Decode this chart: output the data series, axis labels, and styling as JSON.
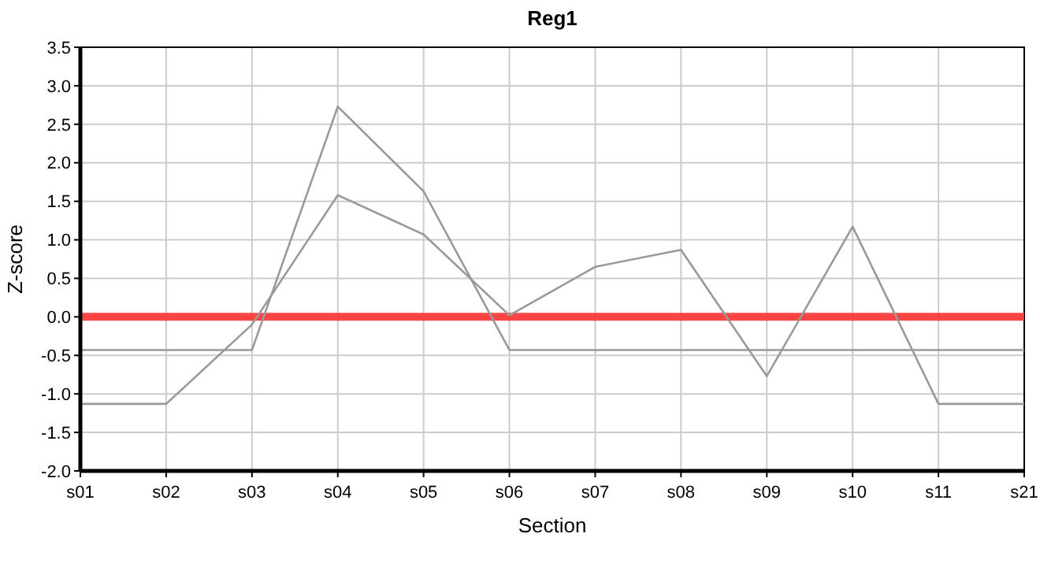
{
  "chart_data": {
    "type": "line",
    "title": "Reg1",
    "xlabel": "Section",
    "ylabel": "Z-score",
    "categories": [
      "s01",
      "s02",
      "s03",
      "s04",
      "s05",
      "s06",
      "s07",
      "s08",
      "s09",
      "s10",
      "s11",
      "s21"
    ],
    "series": [
      {
        "color": "#999999",
        "values": [
          -1.13,
          -1.13,
          -0.1,
          1.58,
          1.07,
          0.02,
          0.65,
          0.87,
          -0.77,
          1.17,
          -1.13,
          -1.13
        ]
      },
      {
        "color": "#999999",
        "values": [
          -0.43,
          -0.43,
          -0.43,
          2.73,
          1.63,
          -0.43,
          -0.43,
          -0.43,
          -0.43,
          -0.43,
          -0.43,
          -0.43
        ]
      }
    ],
    "ylim": [
      -2,
      3.5
    ],
    "yticks": [
      {
        "value": -2,
        "label": "-2.0"
      },
      {
        "value": -1.5,
        "label": "-1.5"
      },
      {
        "value": -1,
        "label": "-1.0"
      },
      {
        "value": -0.5,
        "label": "-0.5"
      },
      {
        "value": 0,
        "label": "0.0"
      },
      {
        "value": 0.5,
        "label": "0.5"
      },
      {
        "value": 1,
        "label": "1.0"
      },
      {
        "value": 1.5,
        "label": "1.5"
      },
      {
        "value": 2,
        "label": "2.0"
      },
      {
        "value": 2.5,
        "label": "2.5"
      },
      {
        "value": 3,
        "label": "3.0"
      },
      {
        "value": 3.5,
        "label": "3.5"
      }
    ],
    "ref_lines": [
      {
        "axis": "y",
        "value": 0,
        "color": "#ff3333"
      }
    ],
    "grid": true
  }
}
